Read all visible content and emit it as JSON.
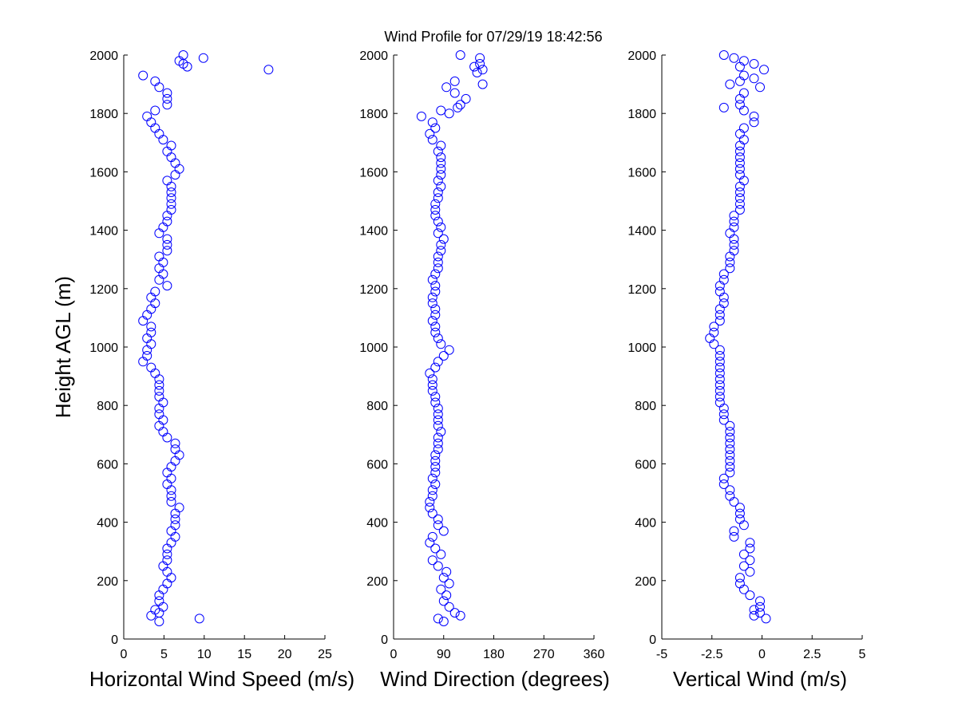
{
  "figure": {
    "title": "Wind Profile for  07/29/19 18:42:56",
    "marker_color": "#0000ff",
    "axis_color": "#000000",
    "background": "#ffffff"
  },
  "chart_data": [
    {
      "type": "scatter",
      "id": "speed",
      "title": "",
      "xlabel": "Horizontal Wind Speed (m/s)",
      "ylabel": "Height AGL (m)",
      "xlim": [
        0,
        25
      ],
      "ylim": [
        0,
        2000
      ],
      "xticks": [
        0,
        5,
        10,
        15,
        20,
        25
      ],
      "xtick_labels": [
        "0",
        "5",
        "10",
        "15",
        "20",
        "25"
      ],
      "yticks": [
        0,
        200,
        400,
        600,
        800,
        1000,
        1200,
        1400,
        1600,
        1800,
        2000
      ],
      "ytick_labels": [
        "0",
        "200",
        "400",
        "600",
        "800",
        "1000",
        "1200",
        "1400",
        "1600",
        "1800",
        "2000"
      ],
      "grid": false,
      "marker": "open-circle",
      "points": [
        [
          9.4,
          70
        ],
        [
          4.4,
          60
        ],
        [
          3.4,
          80
        ],
        [
          4.4,
          90
        ],
        [
          3.9,
          100
        ],
        [
          4.9,
          110
        ],
        [
          4.4,
          130
        ],
        [
          4.4,
          150
        ],
        [
          4.9,
          170
        ],
        [
          5.4,
          190
        ],
        [
          5.9,
          210
        ],
        [
          5.4,
          230
        ],
        [
          4.9,
          250
        ],
        [
          5.4,
          270
        ],
        [
          5.4,
          290
        ],
        [
          5.4,
          310
        ],
        [
          5.9,
          330
        ],
        [
          6.4,
          350
        ],
        [
          5.9,
          370
        ],
        [
          6.4,
          390
        ],
        [
          6.4,
          410
        ],
        [
          6.4,
          430
        ],
        [
          6.9,
          450
        ],
        [
          5.9,
          470
        ],
        [
          5.9,
          490
        ],
        [
          5.9,
          510
        ],
        [
          5.4,
          530
        ],
        [
          5.9,
          550
        ],
        [
          5.4,
          570
        ],
        [
          5.9,
          590
        ],
        [
          6.4,
          610
        ],
        [
          6.9,
          630
        ],
        [
          6.4,
          650
        ],
        [
          6.4,
          670
        ],
        [
          5.4,
          690
        ],
        [
          4.9,
          710
        ],
        [
          4.4,
          730
        ],
        [
          4.9,
          750
        ],
        [
          4.4,
          770
        ],
        [
          4.4,
          790
        ],
        [
          4.9,
          810
        ],
        [
          4.4,
          830
        ],
        [
          4.4,
          850
        ],
        [
          4.4,
          870
        ],
        [
          4.4,
          890
        ],
        [
          3.9,
          910
        ],
        [
          3.4,
          930
        ],
        [
          2.4,
          950
        ],
        [
          2.9,
          970
        ],
        [
          2.9,
          990
        ],
        [
          3.4,
          1010
        ],
        [
          2.9,
          1030
        ],
        [
          3.4,
          1050
        ],
        [
          3.4,
          1070
        ],
        [
          2.4,
          1090
        ],
        [
          2.9,
          1110
        ],
        [
          3.4,
          1130
        ],
        [
          3.9,
          1150
        ],
        [
          3.4,
          1170
        ],
        [
          3.9,
          1190
        ],
        [
          5.4,
          1210
        ],
        [
          4.4,
          1230
        ],
        [
          4.9,
          1250
        ],
        [
          4.4,
          1270
        ],
        [
          4.9,
          1290
        ],
        [
          4.4,
          1310
        ],
        [
          5.4,
          1330
        ],
        [
          5.4,
          1350
        ],
        [
          5.4,
          1370
        ],
        [
          4.4,
          1390
        ],
        [
          4.9,
          1410
        ],
        [
          5.4,
          1430
        ],
        [
          5.4,
          1450
        ],
        [
          5.9,
          1470
        ],
        [
          5.9,
          1490
        ],
        [
          5.9,
          1510
        ],
        [
          5.9,
          1530
        ],
        [
          5.9,
          1550
        ],
        [
          5.4,
          1570
        ],
        [
          6.4,
          1590
        ],
        [
          6.9,
          1610
        ],
        [
          6.4,
          1630
        ],
        [
          5.9,
          1650
        ],
        [
          5.4,
          1670
        ],
        [
          5.9,
          1690
        ],
        [
          4.9,
          1710
        ],
        [
          4.4,
          1730
        ],
        [
          3.9,
          1750
        ],
        [
          3.4,
          1770
        ],
        [
          2.9,
          1790
        ],
        [
          3.9,
          1810
        ],
        [
          5.4,
          1830
        ],
        [
          5.4,
          1850
        ],
        [
          5.4,
          1870
        ],
        [
          4.4,
          1890
        ],
        [
          3.9,
          1910
        ],
        [
          2.4,
          1930
        ],
        [
          18.0,
          1950
        ],
        [
          7.9,
          1960
        ],
        [
          7.4,
          1970
        ],
        [
          6.9,
          1980
        ],
        [
          9.9,
          1990
        ],
        [
          7.4,
          2000
        ]
      ]
    },
    {
      "type": "scatter",
      "id": "direction",
      "title": "",
      "xlabel": "Wind Direction (degrees)",
      "ylabel": "",
      "xlim": [
        0,
        360
      ],
      "ylim": [
        0,
        2000
      ],
      "xticks": [
        0,
        90,
        180,
        270,
        360
      ],
      "xtick_labels": [
        "0",
        "90",
        "180",
        "270",
        "360"
      ],
      "yticks": [
        0,
        200,
        400,
        600,
        800,
        1000,
        1200,
        1400,
        1600,
        1800,
        2000
      ],
      "ytick_labels": [
        "0",
        "200",
        "400",
        "600",
        "800",
        "1000",
        "1200",
        "1400",
        "1600",
        "1800",
        "2000"
      ],
      "grid": false,
      "marker": "open-circle",
      "points": [
        [
          80,
          70
        ],
        [
          90,
          60
        ],
        [
          120,
          80
        ],
        [
          110,
          90
        ],
        [
          100,
          110
        ],
        [
          90,
          130
        ],
        [
          95,
          150
        ],
        [
          85,
          170
        ],
        [
          100,
          190
        ],
        [
          90,
          210
        ],
        [
          95,
          230
        ],
        [
          80,
          250
        ],
        [
          70,
          270
        ],
        [
          85,
          290
        ],
        [
          75,
          310
        ],
        [
          65,
          330
        ],
        [
          70,
          350
        ],
        [
          90,
          370
        ],
        [
          80,
          390
        ],
        [
          80,
          410
        ],
        [
          70,
          430
        ],
        [
          65,
          450
        ],
        [
          65,
          470
        ],
        [
          70,
          490
        ],
        [
          70,
          510
        ],
        [
          75,
          530
        ],
        [
          70,
          550
        ],
        [
          75,
          570
        ],
        [
          75,
          590
        ],
        [
          75,
          610
        ],
        [
          75,
          630
        ],
        [
          80,
          650
        ],
        [
          80,
          670
        ],
        [
          80,
          690
        ],
        [
          85,
          710
        ],
        [
          80,
          730
        ],
        [
          80,
          750
        ],
        [
          80,
          770
        ],
        [
          80,
          790
        ],
        [
          75,
          810
        ],
        [
          75,
          830
        ],
        [
          70,
          850
        ],
        [
          70,
          870
        ],
        [
          70,
          890
        ],
        [
          65,
          910
        ],
        [
          75,
          930
        ],
        [
          80,
          950
        ],
        [
          90,
          970
        ],
        [
          100,
          990
        ],
        [
          85,
          1010
        ],
        [
          80,
          1030
        ],
        [
          75,
          1050
        ],
        [
          75,
          1070
        ],
        [
          70,
          1090
        ],
        [
          75,
          1110
        ],
        [
          75,
          1130
        ],
        [
          70,
          1150
        ],
        [
          70,
          1170
        ],
        [
          75,
          1190
        ],
        [
          75,
          1210
        ],
        [
          70,
          1230
        ],
        [
          75,
          1250
        ],
        [
          80,
          1270
        ],
        [
          80,
          1290
        ],
        [
          80,
          1310
        ],
        [
          85,
          1330
        ],
        [
          85,
          1350
        ],
        [
          90,
          1370
        ],
        [
          80,
          1390
        ],
        [
          85,
          1410
        ],
        [
          80,
          1430
        ],
        [
          75,
          1450
        ],
        [
          75,
          1470
        ],
        [
          75,
          1490
        ],
        [
          80,
          1510
        ],
        [
          80,
          1530
        ],
        [
          85,
          1550
        ],
        [
          80,
          1570
        ],
        [
          85,
          1590
        ],
        [
          85,
          1610
        ],
        [
          85,
          1630
        ],
        [
          85,
          1650
        ],
        [
          80,
          1670
        ],
        [
          85,
          1690
        ],
        [
          70,
          1710
        ],
        [
          65,
          1730
        ],
        [
          75,
          1750
        ],
        [
          70,
          1770
        ],
        [
          50,
          1790
        ],
        [
          85,
          1810
        ],
        [
          120,
          1830
        ],
        [
          130,
          1850
        ],
        [
          110,
          1870
        ],
        [
          95,
          1890
        ],
        [
          110,
          1910
        ],
        [
          150,
          1940
        ],
        [
          160,
          1950
        ],
        [
          145,
          1960
        ],
        [
          155,
          1970
        ],
        [
          155,
          1990
        ],
        [
          120,
          2000
        ],
        [
          160,
          1900
        ],
        [
          100,
          1800
        ],
        [
          115,
          1820
        ]
      ]
    },
    {
      "type": "scatter",
      "id": "vertical",
      "title": "",
      "xlabel": "Vertical Wind (m/s)",
      "ylabel": "",
      "xlim": [
        -5,
        5
      ],
      "ylim": [
        0,
        2000
      ],
      "xticks": [
        -5,
        -2.5,
        0,
        2.5,
        5
      ],
      "xtick_labels": [
        "-5",
        "-2.5",
        "0",
        "2.5",
        "5"
      ],
      "yticks": [
        0,
        200,
        400,
        600,
        800,
        1000,
        1200,
        1400,
        1600,
        1800,
        2000
      ],
      "ytick_labels": [
        "0",
        "200",
        "400",
        "600",
        "800",
        "1000",
        "1200",
        "1400",
        "1600",
        "1800",
        "2000"
      ],
      "grid": false,
      "marker": "open-circle",
      "points": [
        [
          0.2,
          70
        ],
        [
          -0.4,
          80
        ],
        [
          -0.1,
          90
        ],
        [
          -0.4,
          100
        ],
        [
          -0.1,
          110
        ],
        [
          -0.1,
          130
        ],
        [
          -0.6,
          150
        ],
        [
          -0.9,
          170
        ],
        [
          -1.1,
          190
        ],
        [
          -1.1,
          210
        ],
        [
          -0.6,
          230
        ],
        [
          -0.9,
          250
        ],
        [
          -0.6,
          270
        ],
        [
          -0.9,
          290
        ],
        [
          -0.6,
          310
        ],
        [
          -0.6,
          330
        ],
        [
          -1.4,
          350
        ],
        [
          -1.4,
          370
        ],
        [
          -0.9,
          390
        ],
        [
          -1.1,
          410
        ],
        [
          -1.1,
          430
        ],
        [
          -1.1,
          450
        ],
        [
          -1.4,
          470
        ],
        [
          -1.6,
          490
        ],
        [
          -1.6,
          510
        ],
        [
          -1.9,
          530
        ],
        [
          -1.9,
          550
        ],
        [
          -1.6,
          570
        ],
        [
          -1.6,
          590
        ],
        [
          -1.6,
          610
        ],
        [
          -1.6,
          630
        ],
        [
          -1.6,
          650
        ],
        [
          -1.6,
          670
        ],
        [
          -1.6,
          690
        ],
        [
          -1.6,
          710
        ],
        [
          -1.6,
          730
        ],
        [
          -1.9,
          750
        ],
        [
          -1.9,
          770
        ],
        [
          -1.9,
          790
        ],
        [
          -2.1,
          810
        ],
        [
          -2.1,
          830
        ],
        [
          -2.1,
          850
        ],
        [
          -2.1,
          870
        ],
        [
          -2.1,
          890
        ],
        [
          -2.1,
          910
        ],
        [
          -2.1,
          930
        ],
        [
          -2.1,
          950
        ],
        [
          -2.1,
          970
        ],
        [
          -2.1,
          990
        ],
        [
          -2.4,
          1010
        ],
        [
          -2.6,
          1030
        ],
        [
          -2.4,
          1050
        ],
        [
          -2.4,
          1070
        ],
        [
          -2.1,
          1090
        ],
        [
          -2.1,
          1110
        ],
        [
          -2.1,
          1130
        ],
        [
          -1.9,
          1150
        ],
        [
          -1.9,
          1170
        ],
        [
          -2.1,
          1190
        ],
        [
          -2.1,
          1210
        ],
        [
          -1.9,
          1230
        ],
        [
          -1.9,
          1250
        ],
        [
          -1.6,
          1270
        ],
        [
          -1.6,
          1290
        ],
        [
          -1.6,
          1310
        ],
        [
          -1.4,
          1330
        ],
        [
          -1.4,
          1350
        ],
        [
          -1.4,
          1370
        ],
        [
          -1.6,
          1390
        ],
        [
          -1.4,
          1410
        ],
        [
          -1.4,
          1430
        ],
        [
          -1.4,
          1450
        ],
        [
          -1.1,
          1470
        ],
        [
          -1.1,
          1490
        ],
        [
          -1.1,
          1510
        ],
        [
          -1.1,
          1530
        ],
        [
          -1.1,
          1550
        ],
        [
          -0.9,
          1570
        ],
        [
          -1.1,
          1590
        ],
        [
          -1.1,
          1610
        ],
        [
          -1.1,
          1630
        ],
        [
          -1.1,
          1650
        ],
        [
          -1.1,
          1670
        ],
        [
          -1.1,
          1690
        ],
        [
          -0.9,
          1710
        ],
        [
          -1.1,
          1730
        ],
        [
          -0.9,
          1750
        ],
        [
          -0.4,
          1770
        ],
        [
          -0.4,
          1790
        ],
        [
          -0.9,
          1810
        ],
        [
          -1.9,
          1820
        ],
        [
          -1.1,
          1830
        ],
        [
          -1.1,
          1850
        ],
        [
          -0.9,
          1870
        ],
        [
          -0.1,
          1890
        ],
        [
          -1.6,
          1900
        ],
        [
          -1.1,
          1910
        ],
        [
          -0.4,
          1920
        ],
        [
          -0.9,
          1930
        ],
        [
          0.1,
          1950
        ],
        [
          -1.1,
          1960
        ],
        [
          -0.4,
          1970
        ],
        [
          -0.9,
          1980
        ],
        [
          -1.4,
          1990
        ],
        [
          -1.9,
          2000
        ]
      ]
    }
  ]
}
